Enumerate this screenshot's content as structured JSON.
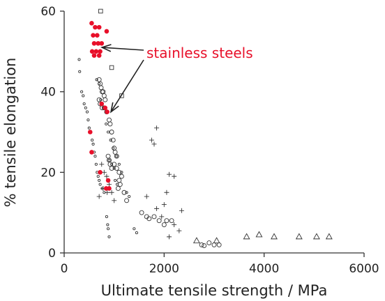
{
  "chart_data": {
    "type": "scatter",
    "title": "",
    "xlabel": "Ultimate tensile strength / MPa",
    "ylabel": "% tensile elongation",
    "xlim": [
      0,
      6000
    ],
    "ylim": [
      0,
      60
    ],
    "xticks": [
      "0",
      "2000",
      "4000",
      "6000"
    ],
    "yticks": [
      "0",
      "20",
      "40",
      "60"
    ],
    "grid": false,
    "annotations": [
      {
        "text": "stainless steels",
        "color": "#e8102a",
        "arrows_to": [
          [
            700,
            51
          ],
          [
            880,
            35
          ]
        ]
      }
    ],
    "series": [
      {
        "marker": "small-circle",
        "color": "#333333",
        "points": [
          [
            300,
            48
          ],
          [
            310,
            45
          ],
          [
            350,
            40
          ],
          [
            380,
            39
          ],
          [
            400,
            37
          ],
          [
            430,
            36
          ],
          [
            460,
            35
          ],
          [
            480,
            33
          ],
          [
            500,
            31
          ],
          [
            520,
            30
          ],
          [
            560,
            28
          ],
          [
            580,
            27
          ],
          [
            600,
            25
          ],
          [
            620,
            24
          ],
          [
            640,
            22
          ],
          [
            660,
            20
          ],
          [
            680,
            19
          ],
          [
            700,
            18
          ],
          [
            720,
            17
          ],
          [
            760,
            16
          ],
          [
            800,
            15
          ],
          [
            850,
            9
          ],
          [
            870,
            7
          ],
          [
            880,
            6
          ],
          [
            900,
            4
          ],
          [
            650,
            43
          ],
          [
            700,
            42
          ],
          [
            730,
            38
          ],
          [
            760,
            37
          ],
          [
            790,
            36
          ],
          [
            840,
            32
          ],
          [
            880,
            30
          ],
          [
            930,
            28
          ],
          [
            980,
            26
          ],
          [
            1050,
            24
          ],
          [
            1100,
            22
          ],
          [
            1150,
            20
          ],
          [
            1250,
            15
          ],
          [
            1300,
            14
          ],
          [
            1400,
            6
          ],
          [
            1450,
            5
          ],
          [
            900,
            23
          ],
          [
            950,
            22
          ],
          [
            1000,
            21
          ],
          [
            1020,
            18
          ],
          [
            1060,
            17
          ]
        ]
      },
      {
        "marker": "circle",
        "color": "#333333",
        "points": [
          [
            700,
            43
          ],
          [
            720,
            42
          ],
          [
            740,
            41
          ],
          [
            760,
            40
          ],
          [
            780,
            40
          ],
          [
            800,
            39
          ],
          [
            820,
            38
          ],
          [
            700,
            38
          ],
          [
            720,
            37
          ],
          [
            760,
            36
          ],
          [
            800,
            36
          ],
          [
            850,
            35
          ],
          [
            900,
            33
          ],
          [
            920,
            32
          ],
          [
            950,
            30
          ],
          [
            980,
            28
          ],
          [
            1000,
            26
          ],
          [
            1020,
            25
          ],
          [
            1050,
            24
          ],
          [
            880,
            24
          ],
          [
            900,
            23
          ],
          [
            920,
            22
          ],
          [
            950,
            21
          ],
          [
            1000,
            22
          ],
          [
            1050,
            21
          ],
          [
            1100,
            20
          ],
          [
            1150,
            19
          ],
          [
            1100,
            18
          ],
          [
            1080,
            16
          ],
          [
            1120,
            17
          ],
          [
            1200,
            15
          ],
          [
            1250,
            13
          ],
          [
            1550,
            10
          ],
          [
            1650,
            9
          ],
          [
            1700,
            8.5
          ],
          [
            1800,
            9
          ],
          [
            1900,
            8
          ],
          [
            2050,
            8
          ],
          [
            2150,
            8
          ],
          [
            2000,
            7
          ],
          [
            2750,
            2
          ],
          [
            2900,
            2.5
          ],
          [
            3000,
            2
          ],
          [
            3100,
            2
          ],
          [
            2800,
            1.8
          ]
        ]
      },
      {
        "marker": "plus",
        "color": "#333333",
        "points": [
          [
            1850,
            31
          ],
          [
            1750,
            28
          ],
          [
            1800,
            27
          ],
          [
            2100,
            19.5
          ],
          [
            2200,
            19
          ],
          [
            2050,
            15
          ],
          [
            1650,
            14
          ],
          [
            2000,
            12
          ],
          [
            1850,
            11
          ],
          [
            2350,
            10.5
          ],
          [
            1950,
            9
          ],
          [
            2200,
            7
          ],
          [
            2100,
            4
          ],
          [
            2300,
            5.5
          ],
          [
            750,
            22
          ],
          [
            800,
            20
          ],
          [
            850,
            19
          ],
          [
            900,
            17
          ],
          [
            780,
            16
          ],
          [
            860,
            15
          ],
          [
            950,
            15
          ],
          [
            700,
            14
          ],
          [
            1000,
            13
          ]
        ]
      },
      {
        "marker": "square",
        "color": "#333333",
        "points": [
          [
            730,
            60
          ],
          [
            950,
            46
          ],
          [
            1150,
            39
          ]
        ]
      },
      {
        "marker": "triangle",
        "color": "#333333",
        "points": [
          [
            2650,
            3
          ],
          [
            3050,
            3
          ],
          [
            3650,
            4
          ],
          [
            3900,
            4.5
          ],
          [
            4200,
            4
          ],
          [
            4700,
            4
          ],
          [
            5050,
            4
          ],
          [
            5300,
            4
          ]
        ]
      },
      {
        "marker": "filled-circle",
        "color": "#e8102a",
        "label": "stainless steels",
        "points": [
          [
            550,
            57
          ],
          [
            620,
            56
          ],
          [
            700,
            56
          ],
          [
            580,
            54
          ],
          [
            660,
            54
          ],
          [
            850,
            55
          ],
          [
            600,
            52
          ],
          [
            680,
            52
          ],
          [
            750,
            52
          ],
          [
            560,
            50
          ],
          [
            640,
            50
          ],
          [
            720,
            50
          ],
          [
            600,
            49
          ],
          [
            700,
            49
          ],
          [
            750,
            37
          ],
          [
            820,
            36
          ],
          [
            860,
            35
          ],
          [
            520,
            30
          ],
          [
            550,
            25
          ],
          [
            720,
            20
          ],
          [
            880,
            18
          ],
          [
            840,
            16
          ],
          [
            900,
            16
          ]
        ]
      }
    ]
  }
}
